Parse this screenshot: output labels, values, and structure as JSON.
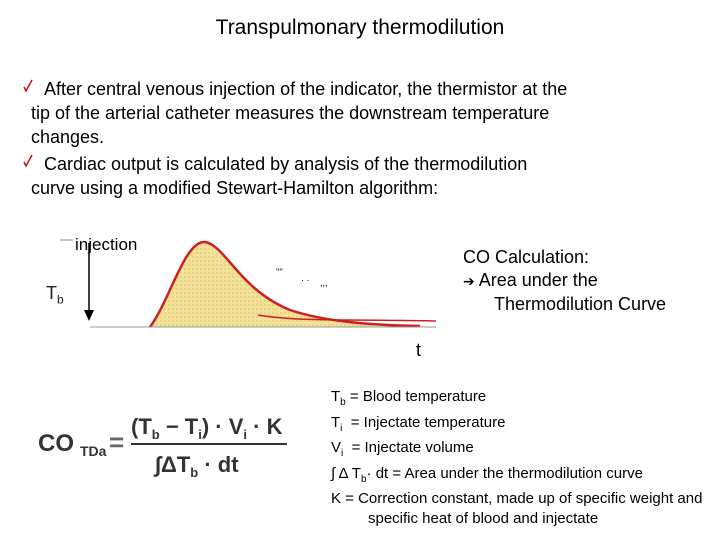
{
  "title": "Transpulmonary thermodilution",
  "bullets": [
    {
      "line1": "After central venous injection of the indicator, the thermistor at the",
      "line2": "tip of the arterial catheter measures the downstream temperature",
      "line3": "changes."
    },
    {
      "line1": "Cardiac output is calculated by analysis of the thermodilution",
      "line2": "curve using a modified Stewart-Hamilton algorithm:"
    }
  ],
  "diagram": {
    "injection_label": "injection",
    "tb_label": "T",
    "tb_sub": "b",
    "t_label": "t",
    "co_title": "CO Calculation:",
    "co_line1": "Area under the",
    "co_line2": "Thermodilution Curve"
  },
  "definitions": {
    "tb_sym": "T",
    "tb_sub": "b",
    "tb_text": "= Blood temperature",
    "ti_sym": "T",
    "ti_sub": "i",
    "ti_text": "  = Injectate temperature",
    "vi_sym": "V",
    "vi_sub": "i",
    "vi_text": "  = Injectate volume",
    "int_a": "∫ Δ T",
    "int_sub": "b",
    "int_b": "· dt = Area under the thermodilution curve",
    "k_line": "K  = Correction constant, made up of specific weight and",
    "k_line2": "specific heat of blood and injectate"
  },
  "formula": {
    "lhs": "CO",
    "lhs_sub": "TDa",
    "equals": "=",
    "num_open": "(T",
    "num_b": "b",
    "num_minus": " − T",
    "num_i": "i",
    "num_close": ")",
    "num_dot1": " · V",
    "num_vi": "i",
    "num_dot2": " · K",
    "den_int": "∫ΔT",
    "den_b": "b",
    "den_rest": " · dt"
  },
  "colors": {
    "curve_fill": "#f4e29a",
    "curve_stroke": "#cc1f1f",
    "formula_grey": "#333333"
  }
}
